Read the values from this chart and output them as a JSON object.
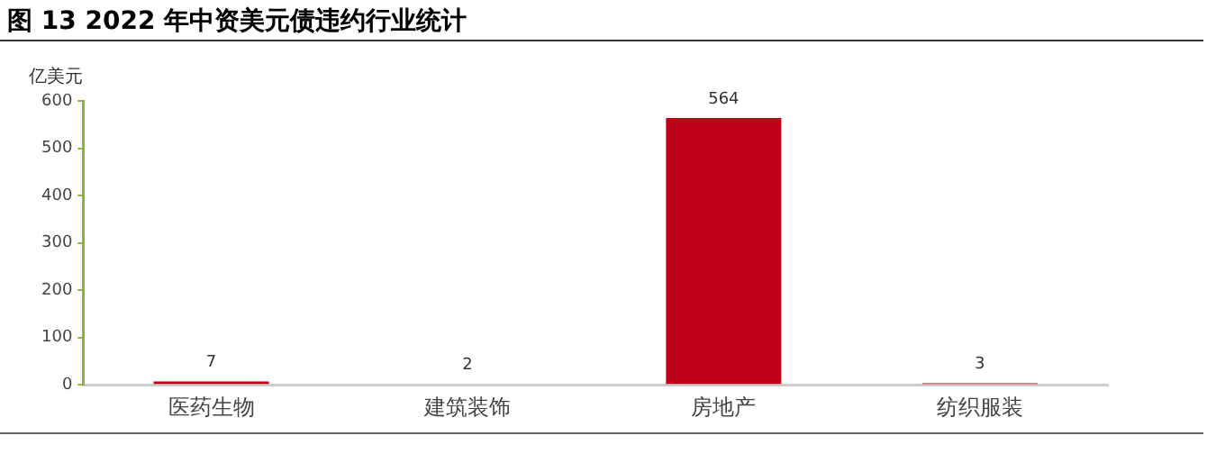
{
  "chart_data": {
    "type": "bar",
    "title": "图 13  2022 年中资美元债违约行业统计",
    "ylabel": "亿美元",
    "categories": [
      "医药生物",
      "建筑装饰",
      "房地产",
      "纺织服装"
    ],
    "values": [
      7,
      2,
      564,
      3
    ],
    "color": "#c00018",
    "ylim": [
      0,
      600
    ],
    "yticks": [
      0,
      100,
      200,
      300,
      400,
      500,
      600
    ],
    "grid": false,
    "legend": false,
    "data_labels": true
  }
}
